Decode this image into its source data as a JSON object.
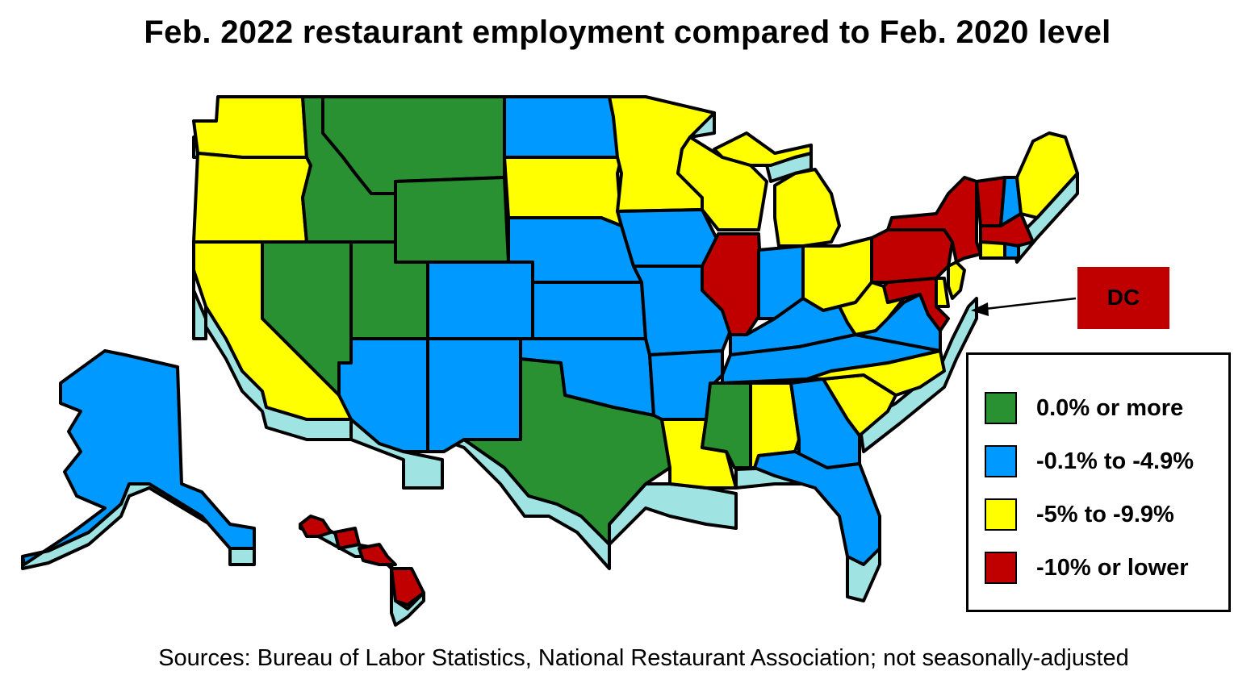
{
  "title": "Feb. 2022 restaurant employment compared to Feb. 2020 level",
  "source": "Sources: Bureau of Labor Statistics, National Restaurant Association; not seasonally-adjusted",
  "colors": {
    "green": "#2a9132",
    "blue": "#0099ff",
    "yellow": "#ffff00",
    "red": "#c00000",
    "extrusion": "#9fe3e3"
  },
  "legend": [
    {
      "label": "0.0% or more",
      "color": "#2a9132"
    },
    {
      "label": "-0.1% to -4.9%",
      "color": "#0099ff"
    },
    {
      "label": "-5% to -9.9%",
      "color": "#ffff00"
    },
    {
      "label": "-10% or lower",
      "color": "#c00000"
    }
  ],
  "dc_callout": {
    "label": "DC",
    "color": "#c00000"
  },
  "states": {
    "WA": "yellow",
    "OR": "yellow",
    "CA": "yellow",
    "ID": "green",
    "MT": "green",
    "WY": "green",
    "NV": "green",
    "UT": "green",
    "TX": "green",
    "ND": "blue",
    "SD": "yellow",
    "NE": "blue",
    "KS": "blue",
    "OK": "blue",
    "CO": "blue",
    "AZ": "blue",
    "NM": "blue",
    "MN": "yellow",
    "IA": "blue",
    "MO": "blue",
    "AR": "blue",
    "LA": "yellow",
    "WI": "yellow",
    "IL": "red",
    "MI": "yellow",
    "IN": "blue",
    "OH": "yellow",
    "KY": "blue",
    "TN": "blue",
    "MS": "green",
    "AL": "yellow",
    "GA": "blue",
    "FL": "blue",
    "SC": "yellow",
    "NC": "yellow",
    "VA": "blue",
    "WV": "yellow",
    "PA": "red",
    "NY": "red",
    "NJ": "yellow",
    "DE": "yellow",
    "MD": "red",
    "CT": "yellow",
    "RI": "blue",
    "MA": "red",
    "VT": "red",
    "NH": "blue",
    "ME": "yellow",
    "AK": "blue",
    "HI": "red"
  }
}
